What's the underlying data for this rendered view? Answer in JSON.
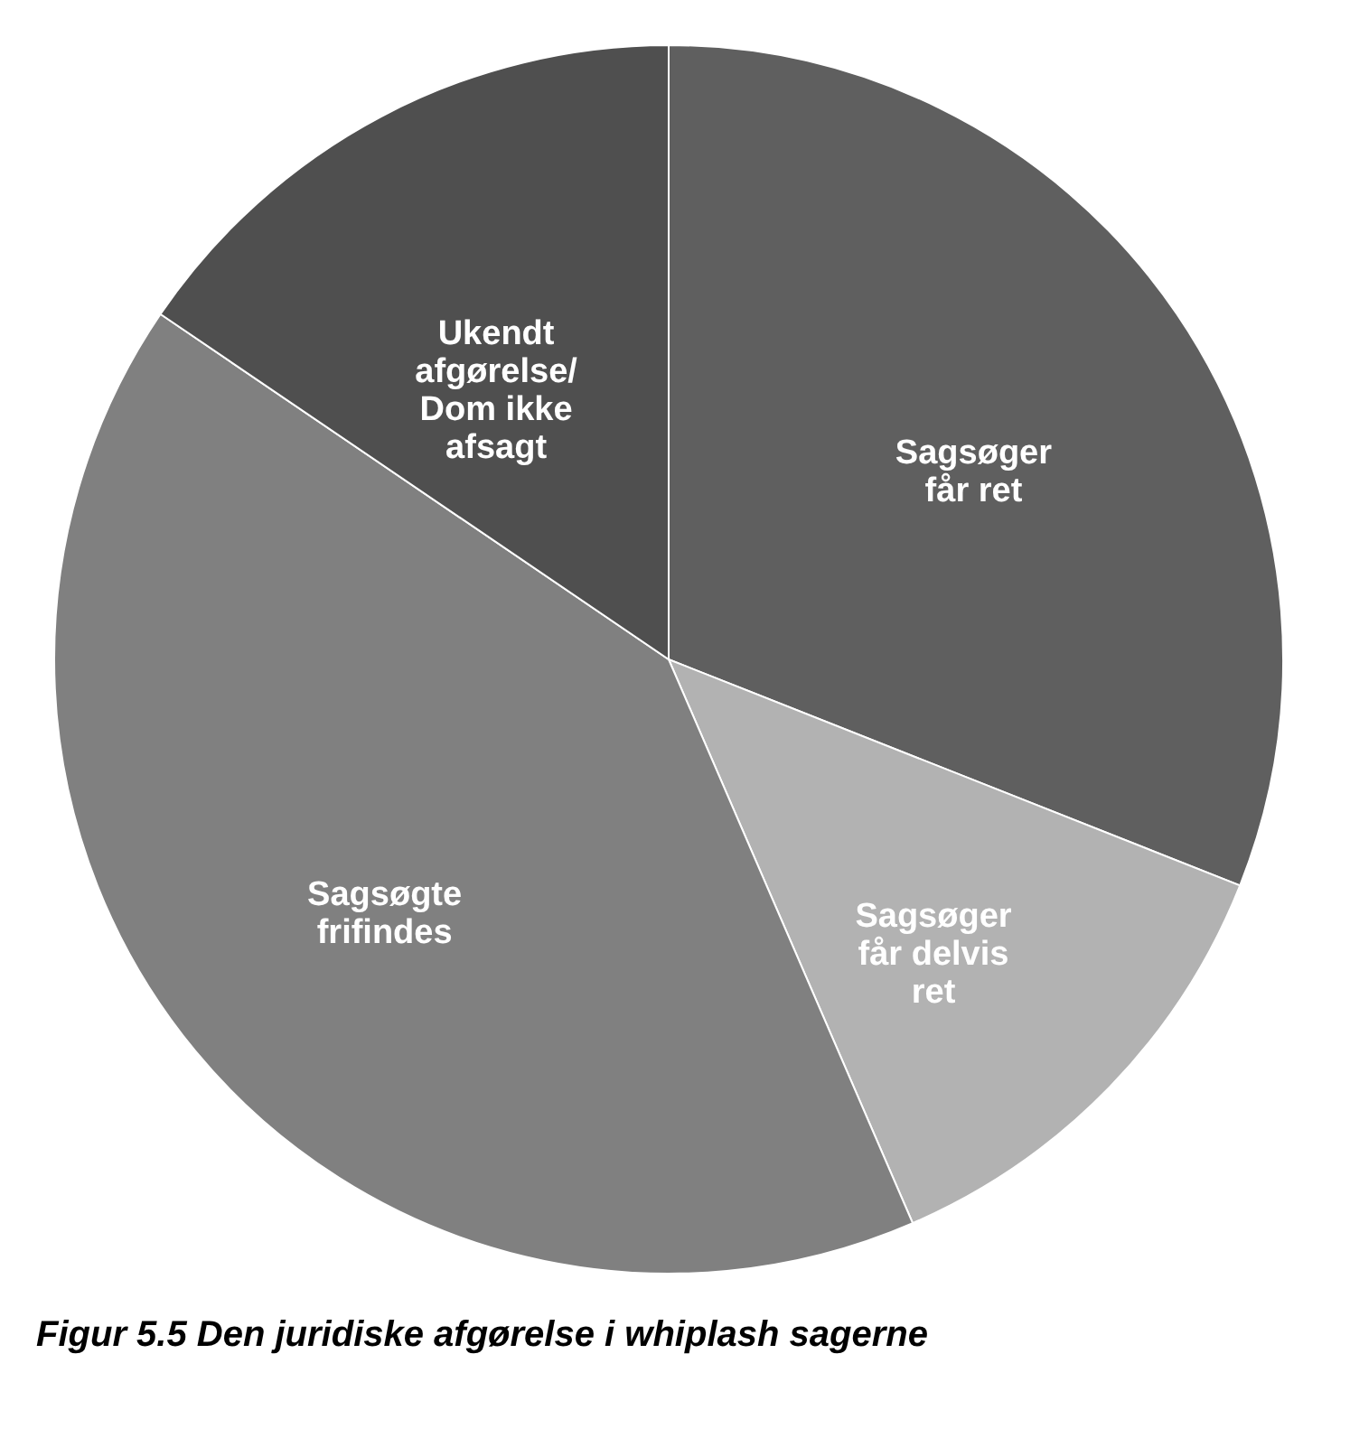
{
  "chart_data": {
    "type": "pie",
    "title": "Figur 5.5 Den juridiske afgørelse i whiplash sagerne",
    "categories": [
      "Sagsøger\nfår ret",
      "Sagsøger\nfår delvis\nret",
      "Sagsøgte\nfrifindes",
      "Ukendt\nafgørelse/\nDom ikke\nafsagt"
    ],
    "values": [
      31,
      12.5,
      41,
      15.5
    ],
    "colors": [
      "#5f5f5f",
      "#b2b2b2",
      "#808080",
      "#4f4f4f"
    ],
    "legend": false
  }
}
